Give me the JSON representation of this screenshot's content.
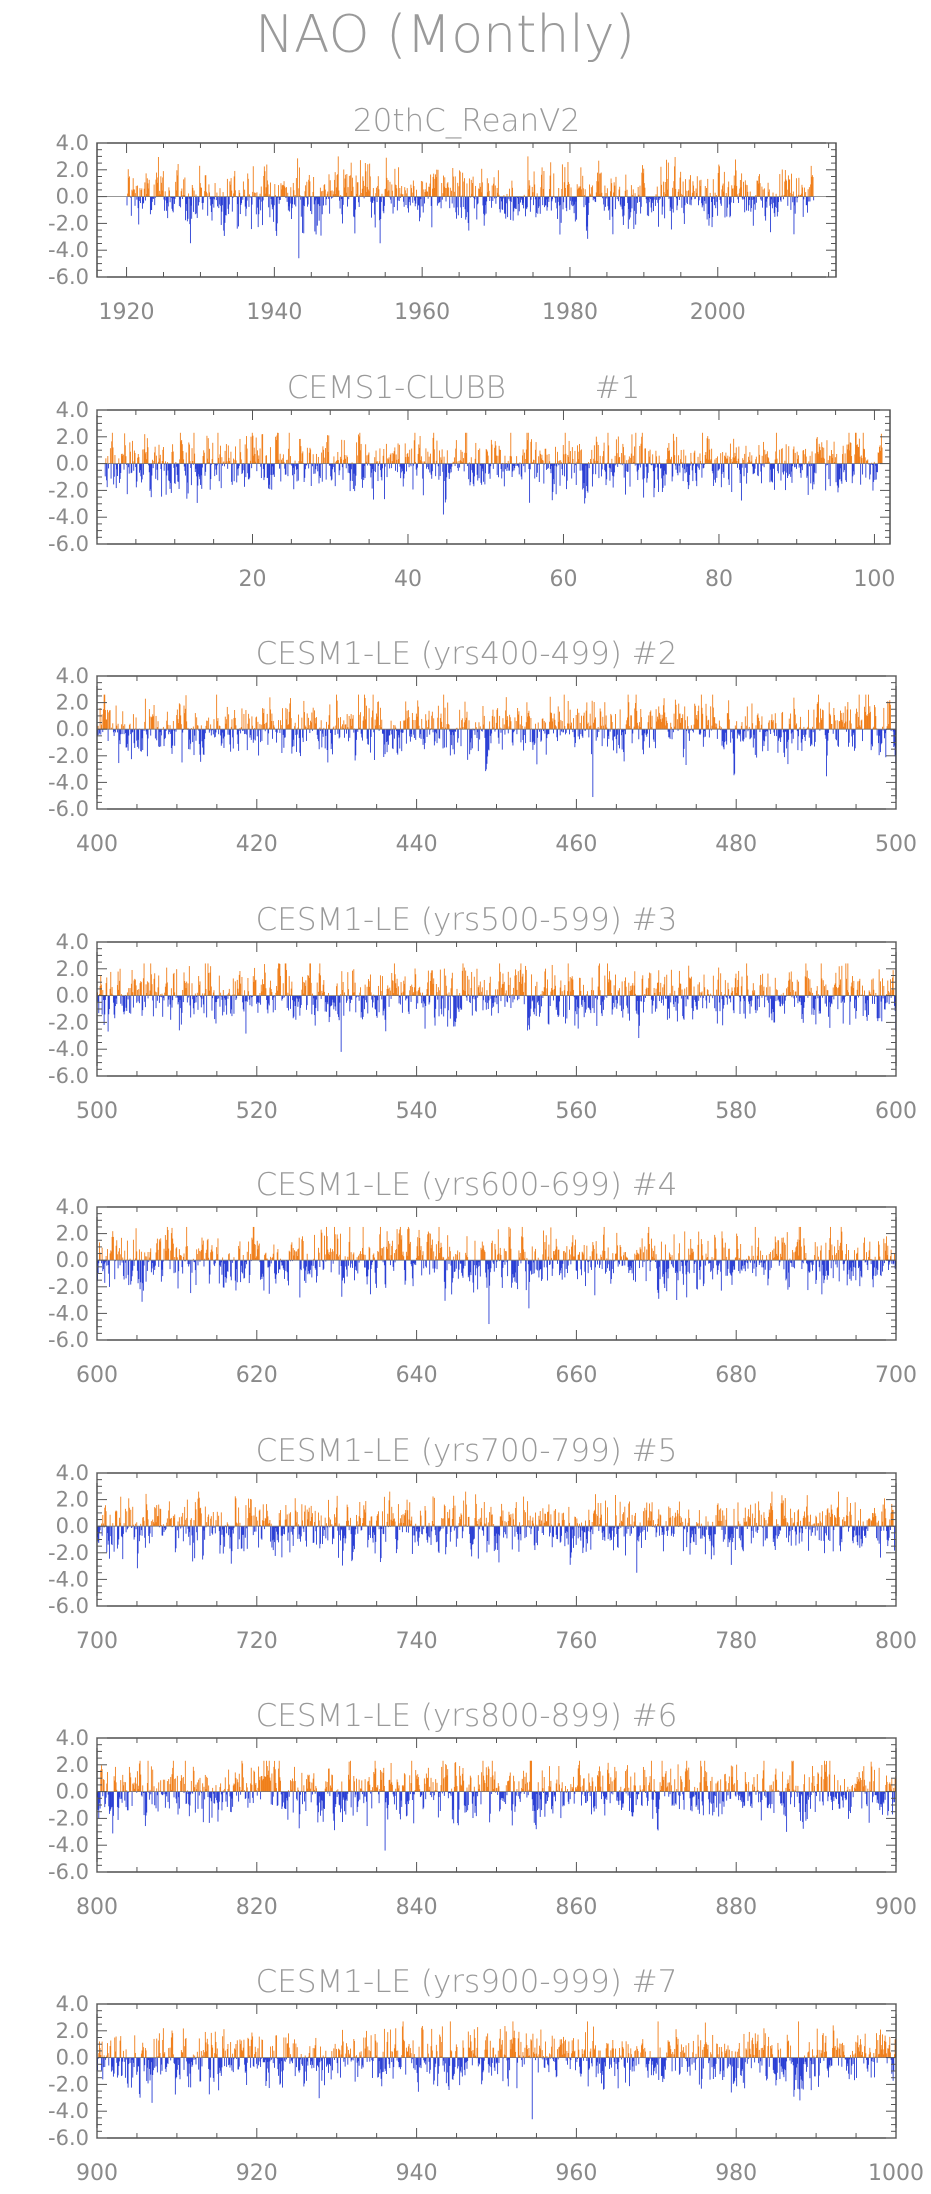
{
  "figure": {
    "title": "NAO (Monthly)",
    "colors": {
      "positive": "#f07f1b",
      "negative": "#2a3fd4",
      "text": "#9a9a9a"
    }
  },
  "chart_data": [
    {
      "type": "bar",
      "title": "20thC_ReanV2",
      "x_range": [
        1920,
        2013
      ],
      "xlim": [
        1916,
        2016
      ],
      "xticks": [
        "1920",
        "1940",
        "1960",
        "1980",
        "2000"
      ],
      "ylim": [
        -6.0,
        4.0
      ],
      "yticks": [
        "4.0",
        "2.0",
        "0.0",
        "-2.0",
        "-4.0",
        "-6.0"
      ],
      "series_description": "monthly NAO index; orange bars positive, blue bars negative",
      "extremes": {
        "max": 3.0,
        "min": -4.6
      }
    },
    {
      "type": "bar",
      "title": "CEMS1-CLUBB         #1",
      "x_range": [
        1,
        101
      ],
      "xlim": [
        0,
        102
      ],
      "xticks": [
        "20",
        "40",
        "60",
        "80",
        "100"
      ],
      "ylim": [
        -6.0,
        4.0
      ],
      "yticks": [
        "4.0",
        "2.0",
        "0.0",
        "-2.0",
        "-4.0",
        "-6.0"
      ],
      "series_description": "monthly NAO index; orange bars positive, blue bars negative",
      "extremes": {
        "max": 2.3,
        "min": -3.8
      }
    },
    {
      "type": "bar",
      "title": "CESM1-LE (yrs400-499) #2",
      "x_range": [
        400,
        500
      ],
      "xlim": [
        400,
        500
      ],
      "xticks": [
        "400",
        "420",
        "440",
        "460",
        "480",
        "500"
      ],
      "ylim": [
        -6.0,
        4.0
      ],
      "yticks": [
        "4.0",
        "2.0",
        "0.0",
        "-2.0",
        "-4.0",
        "-6.0"
      ],
      "series_description": "monthly NAO index; orange bars positive, blue bars negative",
      "extremes": {
        "max": 2.6,
        "min": -5.1
      }
    },
    {
      "type": "bar",
      "title": "CESM1-LE (yrs500-599) #3",
      "x_range": [
        500,
        600
      ],
      "xlim": [
        500,
        600
      ],
      "xticks": [
        "500",
        "520",
        "540",
        "560",
        "580",
        "600"
      ],
      "ylim": [
        -6.0,
        4.0
      ],
      "yticks": [
        "4.0",
        "2.0",
        "0.0",
        "-2.0",
        "-4.0",
        "-6.0"
      ],
      "series_description": "monthly NAO index; orange bars positive, blue bars negative",
      "extremes": {
        "max": 2.4,
        "min": -4.2
      }
    },
    {
      "type": "bar",
      "title": "CESM1-LE (yrs600-699) #4",
      "x_range": [
        600,
        700
      ],
      "xlim": [
        600,
        700
      ],
      "xticks": [
        "600",
        "620",
        "640",
        "660",
        "680",
        "700"
      ],
      "ylim": [
        -6.0,
        4.0
      ],
      "yticks": [
        "4.0",
        "2.0",
        "0.0",
        "-2.0",
        "-4.0",
        "-6.0"
      ],
      "series_description": "monthly NAO index; orange bars positive, blue bars negative",
      "extremes": {
        "max": 2.5,
        "min": -4.8
      }
    },
    {
      "type": "bar",
      "title": "CESM1-LE (yrs700-799) #5",
      "x_range": [
        700,
        800
      ],
      "xlim": [
        700,
        800
      ],
      "xticks": [
        "700",
        "720",
        "740",
        "760",
        "780",
        "800"
      ],
      "ylim": [
        -6.0,
        4.0
      ],
      "yticks": [
        "4.0",
        "2.0",
        "0.0",
        "-2.0",
        "-4.0",
        "-6.0"
      ],
      "series_description": "monthly NAO index; orange bars positive, blue bars negative",
      "extremes": {
        "max": 2.6,
        "min": -3.5
      }
    },
    {
      "type": "bar",
      "title": "CESM1-LE (yrs800-899) #6",
      "x_range": [
        800,
        900
      ],
      "xlim": [
        800,
        900
      ],
      "xticks": [
        "800",
        "820",
        "840",
        "860",
        "880",
        "900"
      ],
      "ylim": [
        -6.0,
        4.0
      ],
      "yticks": [
        "4.0",
        "2.0",
        "0.0",
        "-2.0",
        "-4.0",
        "-6.0"
      ],
      "series_description": "monthly NAO index; orange bars positive, blue bars negative",
      "extremes": {
        "max": 2.3,
        "min": -4.4
      }
    },
    {
      "type": "bar",
      "title": "CESM1-LE (yrs900-999) #7",
      "x_range": [
        900,
        1000
      ],
      "xlim": [
        900,
        1000
      ],
      "xticks": [
        "900",
        "920",
        "940",
        "960",
        "980",
        "1000"
      ],
      "ylim": [
        -6.0,
        4.0
      ],
      "yticks": [
        "4.0",
        "2.0",
        "0.0",
        "-2.0",
        "-4.0",
        "-6.0"
      ],
      "series_description": "monthly NAO index; orange bars positive, blue bars negative",
      "extremes": {
        "max": 2.7,
        "min": -4.6
      }
    }
  ]
}
